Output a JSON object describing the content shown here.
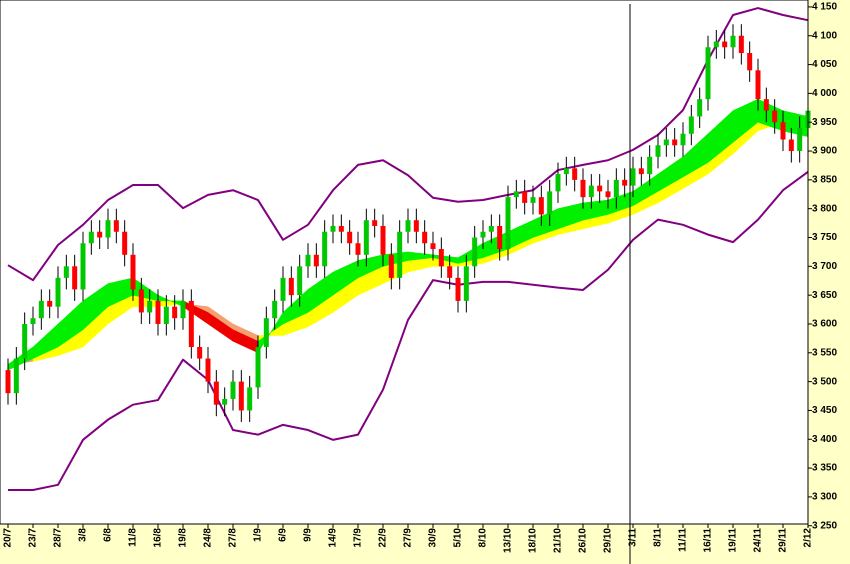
{
  "chart_data": {
    "type": "candlestick",
    "categories": [
      "20/7",
      "23/7",
      "28/7",
      "3/8",
      "6/8",
      "11/8",
      "16/8",
      "19/8",
      "24/8",
      "27/8",
      "1/9",
      "6/9",
      "9/9",
      "14/9",
      "17/9",
      "22/9",
      "27/9",
      "30/9",
      "5/10",
      "8/10",
      "13/10",
      "18/10",
      "21/10",
      "26/10",
      "29/10",
      "3/11",
      "8/11",
      "11/11",
      "16/11",
      "19/11",
      "24/11",
      "29/11",
      "2/12"
    ],
    "open": [
      3520,
      3480,
      3540,
      3600,
      3610,
      3640,
      3630,
      3680,
      3700,
      3660,
      3740,
      3760,
      3750,
      3780,
      3760,
      3720,
      3660,
      3620,
      3640,
      3600,
      3630,
      3610,
      3640,
      3560,
      3540,
      3500,
      3460,
      3470,
      3500,
      3450,
      3490,
      3560,
      3610,
      3640,
      3680,
      3650,
      3700,
      3720,
      3700,
      3760,
      3770,
      3760,
      3740,
      3720,
      3780,
      3770,
      3720,
      3680,
      3760,
      3780,
      3760,
      3740,
      3730,
      3700,
      3680,
      3640,
      3700,
      3750,
      3760,
      3770,
      3730,
      3820,
      3830,
      3810,
      3820,
      3790,
      3830,
      3860,
      3870,
      3850,
      3820,
      3840,
      3830,
      3820,
      3850,
      3840,
      3870,
      3860,
      3890,
      3910,
      3920,
      3910,
      3930,
      3960,
      3990,
      4080,
      4090,
      4080,
      4100,
      4070,
      4040,
      3990,
      3970,
      3950,
      3920,
      3900,
      3940
    ],
    "high": [
      3540,
      3560,
      3620,
      3630,
      3660,
      3660,
      3700,
      3720,
      3720,
      3760,
      3780,
      3780,
      3800,
      3800,
      3780,
      3740,
      3680,
      3660,
      3660,
      3650,
      3650,
      3660,
      3660,
      3580,
      3560,
      3520,
      3490,
      3520,
      3520,
      3510,
      3580,
      3630,
      3660,
      3700,
      3700,
      3720,
      3740,
      3740,
      3780,
      3790,
      3790,
      3780,
      3760,
      3800,
      3800,
      3790,
      3740,
      3780,
      3800,
      3800,
      3780,
      3760,
      3750,
      3720,
      3700,
      3720,
      3770,
      3780,
      3790,
      3790,
      3840,
      3850,
      3850,
      3840,
      3840,
      3850,
      3880,
      3890,
      3890,
      3870,
      3860,
      3860,
      3850,
      3870,
      3870,
      3890,
      3890,
      3910,
      3930,
      3940,
      3940,
      3950,
      3980,
      4010,
      4100,
      4110,
      4110,
      4120,
      4120,
      4090,
      4060,
      4010,
      3990,
      3970,
      3940,
      3960,
      3990
    ],
    "low": [
      3460,
      3460,
      3520,
      3580,
      3590,
      3610,
      3610,
      3660,
      3640,
      3640,
      3720,
      3730,
      3730,
      3740,
      3700,
      3640,
      3600,
      3600,
      3580,
      3580,
      3590,
      3590,
      3540,
      3520,
      3480,
      3440,
      3440,
      3450,
      3430,
      3430,
      3470,
      3540,
      3590,
      3620,
      3630,
      3630,
      3680,
      3680,
      3680,
      3740,
      3740,
      3720,
      3700,
      3700,
      3750,
      3700,
      3660,
      3660,
      3740,
      3740,
      3720,
      3710,
      3680,
      3660,
      3620,
      3620,
      3680,
      3730,
      3740,
      3710,
      3710,
      3800,
      3790,
      3790,
      3770,
      3770,
      3810,
      3840,
      3830,
      3800,
      3800,
      3810,
      3800,
      3800,
      3820,
      3820,
      3840,
      3840,
      3870,
      3890,
      3890,
      3890,
      3910,
      3940,
      3970,
      4060,
      4060,
      4060,
      4050,
      4020,
      3970,
      3950,
      3930,
      3900,
      3880,
      3880,
      3920
    ],
    "close": [
      3480,
      3540,
      3600,
      3610,
      3640,
      3630,
      3680,
      3700,
      3660,
      3740,
      3760,
      3750,
      3780,
      3760,
      3720,
      3660,
      3620,
      3640,
      3600,
      3630,
      3610,
      3640,
      3560,
      3540,
      3500,
      3460,
      3470,
      3500,
      3450,
      3490,
      3560,
      3610,
      3640,
      3680,
      3650,
      3700,
      3720,
      3700,
      3760,
      3770,
      3760,
      3740,
      3720,
      3780,
      3770,
      3720,
      3680,
      3760,
      3780,
      3760,
      3740,
      3730,
      3700,
      3680,
      3640,
      3700,
      3750,
      3760,
      3770,
      3730,
      3820,
      3830,
      3810,
      3820,
      3790,
      3830,
      3860,
      3870,
      3850,
      3820,
      3840,
      3830,
      3820,
      3850,
      3840,
      3870,
      3860,
      3890,
      3910,
      3920,
      3910,
      3930,
      3960,
      3990,
      4080,
      4090,
      4080,
      4100,
      4070,
      4040,
      3990,
      3970,
      3950,
      3920,
      3900,
      3940,
      3970
    ],
    "upper_band": [
      3702,
      3676,
      3737,
      3772,
      3815,
      3841,
      3841,
      3801,
      3824,
      3832,
      3815,
      3746,
      3772,
      3832,
      3876,
      3884,
      3858,
      3819,
      3812,
      3815,
      3824,
      3832,
      3867,
      3876,
      3884,
      3902,
      3928,
      3971,
      4058,
      4136,
      4148,
      4136,
      4127
    ],
    "lower_band": [
      3312,
      3312,
      3321,
      3399,
      3434,
      3460,
      3468,
      3538,
      3503,
      3416,
      3408,
      3425,
      3416,
      3399,
      3408,
      3486,
      3607,
      3676,
      3668,
      3673,
      3673,
      3668,
      3663,
      3659,
      3694,
      3746,
      3781,
      3772,
      3755,
      3742,
      3781,
      3832,
      3864
    ],
    "ma_fast": [
      3530,
      3560,
      3600,
      3640,
      3670,
      3680,
      3650,
      3630,
      3600,
      3570,
      3550,
      3620,
      3660,
      3690,
      3710,
      3720,
      3725,
      3720,
      3715,
      3740,
      3760,
      3780,
      3800,
      3810,
      3815,
      3830,
      3860,
      3890,
      3930,
      3970,
      3990,
      3970,
      3960
    ],
    "ma_mid": [
      3520,
      3540,
      3560,
      3590,
      3630,
      3650,
      3640,
      3640,
      3620,
      3590,
      3570,
      3600,
      3620,
      3650,
      3680,
      3700,
      3710,
      3715,
      3705,
      3715,
      3730,
      3750,
      3765,
      3780,
      3790,
      3805,
      3830,
      3855,
      3880,
      3915,
      3950,
      3935,
      3925
    ],
    "ma_slow": [
      3530,
      3535,
      3545,
      3560,
      3600,
      3630,
      3630,
      3635,
      3630,
      3600,
      3580,
      3580,
      3595,
      3620,
      3650,
      3670,
      3690,
      3700,
      3700,
      3705,
      3720,
      3740,
      3755,
      3765,
      3775,
      3790,
      3810,
      3835,
      3860,
      3895,
      3935,
      3950,
      3945
    ],
    "up_color": "#00c800",
    "down_color": "#ff0000",
    "band_color": "#800080",
    "ribbon_colors": {
      "fast_above": "#00f000",
      "fast_below": "#ee0000",
      "mid_above": "#ffff00",
      "mid_below": "#f4a070"
    },
    "ylim": [
      3253,
      4162
    ],
    "yticks": [
      {
        "value": 3250,
        "label": "3 250"
      },
      {
        "value": 3300,
        "label": "3 300"
      },
      {
        "value": 3350,
        "label": "3 350"
      },
      {
        "value": 3400,
        "label": "3 400"
      },
      {
        "value": 3450,
        "label": "3 450"
      },
      {
        "value": 3500,
        "label": "3 500"
      },
      {
        "value": 3550,
        "label": "3 550"
      },
      {
        "value": 3600,
        "label": "3 600"
      },
      {
        "value": 3650,
        "label": "3 650"
      },
      {
        "value": 3700,
        "label": "3 700"
      },
      {
        "value": 3750,
        "label": "3 750"
      },
      {
        "value": 3800,
        "label": "3 800"
      },
      {
        "value": 3850,
        "label": "3 850"
      },
      {
        "value": 3900,
        "label": "3 900"
      },
      {
        "value": 3950,
        "label": "3 950"
      },
      {
        "value": 4000,
        "label": "4 000"
      },
      {
        "value": 4050,
        "label": "4 050"
      },
      {
        "value": 4100,
        "label": "4 100"
      },
      {
        "value": 4150,
        "label": "4 150"
      }
    ]
  }
}
